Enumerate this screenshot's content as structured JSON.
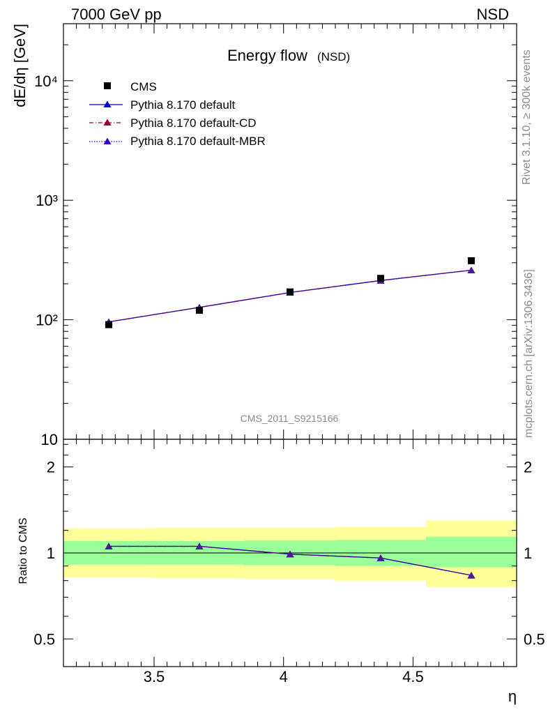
{
  "header": {
    "left": "7000 GeV pp",
    "right": "NSD"
  },
  "side_labels": {
    "rivet": "Rivet 3.1.10, ≥ 300k events",
    "mcplots": "mcplots.cern.ch [arXiv:1306.3436]"
  },
  "colors": {
    "data": "#000000",
    "default": "#0000cc",
    "cd": "#990033",
    "mbr": "#3300cc",
    "marker": "#4a1a9a",
    "band_inner": "#99ff99",
    "band_outer": "#ffff99"
  },
  "chart_data": [
    {
      "type": "scatter",
      "panel": "main",
      "title": "Energy flow",
      "title_suffix": "(NSD)",
      "ylabel": "dE/dη [GeV]",
      "yscale": "log",
      "xlim": [
        3.15,
        4.9
      ],
      "ylim": [
        10,
        30000
      ],
      "y_tick_labels": [
        "10",
        "10²",
        "10³",
        "10⁴"
      ],
      "watermark": "CMS_2011_S9215166",
      "legend_position": "top-left",
      "x": [
        3.325,
        3.675,
        4.025,
        4.375,
        4.725
      ],
      "series": [
        {
          "name": "CMS",
          "values": [
            91,
            120,
            171,
            222,
            312
          ],
          "style": "square"
        },
        {
          "name": "Pythia 8.170 default",
          "values": [
            96,
            127,
            169,
            213,
            260
          ],
          "style": "solid"
        },
        {
          "name": "Pythia 8.170 default-CD",
          "values": [
            96,
            127,
            169,
            213,
            260
          ],
          "style": "dashdot"
        },
        {
          "name": "Pythia 8.170 default-MBR",
          "values": [
            96,
            127,
            169,
            213,
            260
          ],
          "style": "dotted"
        }
      ]
    },
    {
      "type": "line",
      "panel": "ratio",
      "ylabel": "Ratio to CMS",
      "xlabel": "η",
      "yscale": "log",
      "xlim": [
        3.15,
        4.9
      ],
      "ylim": [
        0.4,
        2.5
      ],
      "x_tick_labels": [
        "3.5",
        "4",
        "4.5"
      ],
      "y_tick_labels": [
        "0.5",
        "1",
        "2"
      ],
      "bins": [
        [
          3.15,
          3.5
        ],
        [
          3.5,
          3.85
        ],
        [
          3.85,
          4.2
        ],
        [
          4.2,
          4.55
        ],
        [
          4.55,
          4.9
        ]
      ],
      "band_inner": [
        [
          0.91,
          1.1
        ],
        [
          0.91,
          1.1
        ],
        [
          0.905,
          1.105
        ],
        [
          0.9,
          1.11
        ],
        [
          0.89,
          1.14
        ]
      ],
      "band_outer": [
        [
          0.82,
          1.22
        ],
        [
          0.815,
          1.225
        ],
        [
          0.81,
          1.225
        ],
        [
          0.8,
          1.235
        ],
        [
          0.76,
          1.3
        ]
      ],
      "x": [
        3.325,
        3.675,
        4.025,
        4.375,
        4.725
      ],
      "series": [
        {
          "name": "Pythia 8.170 default",
          "values": [
            1.055,
            1.055,
            0.99,
            0.96,
            0.835
          ]
        },
        {
          "name": "Pythia 8.170 default-CD",
          "values": [
            1.055,
            1.055,
            0.99,
            0.96,
            0.835
          ]
        },
        {
          "name": "Pythia 8.170 default-MBR",
          "values": [
            1.055,
            1.055,
            0.99,
            0.96,
            0.835
          ]
        }
      ]
    }
  ]
}
